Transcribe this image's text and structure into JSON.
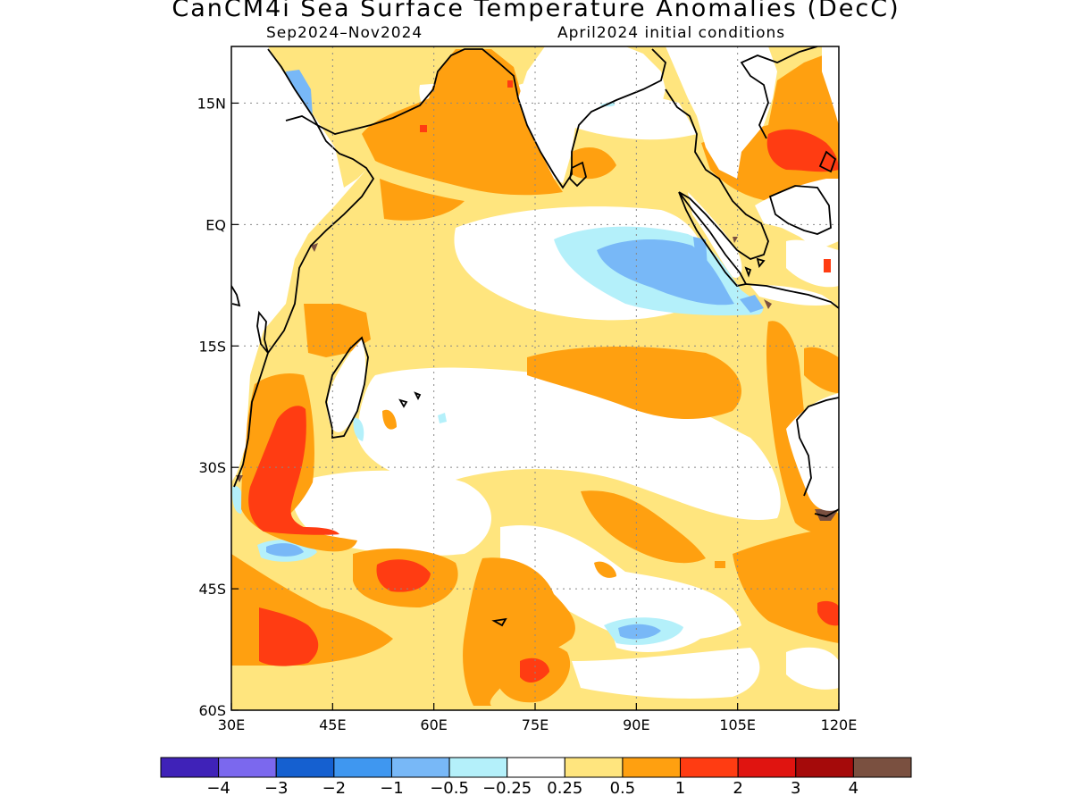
{
  "header": {
    "title": "CanCM4i Sea Surface Temperature Anomalies (DecC)",
    "subtitle_left": "Sep2024–Nov2024",
    "subtitle_right": "April2024 initial conditions"
  },
  "map": {
    "lon_range": [
      30,
      120
    ],
    "lat_range": [
      -60,
      22
    ],
    "lon_ticks": [
      {
        "value": 30,
        "label": "30E"
      },
      {
        "value": 45,
        "label": "45E"
      },
      {
        "value": 60,
        "label": "60E"
      },
      {
        "value": 75,
        "label": "75E"
      },
      {
        "value": 90,
        "label": "90E"
      },
      {
        "value": 105,
        "label": "105E"
      },
      {
        "value": 120,
        "label": "120E"
      }
    ],
    "lat_ticks": [
      {
        "value": 15,
        "label": "15N"
      },
      {
        "value": 0,
        "label": "EQ"
      },
      {
        "value": -15,
        "label": "15S"
      },
      {
        "value": -30,
        "label": "30S"
      },
      {
        "value": -45,
        "label": "45S"
      },
      {
        "value": -60,
        "label": "60S"
      }
    ],
    "gridlines": true
  },
  "colorbar": {
    "colors": [
      "#3f22b8",
      "#7b68ee",
      "#1560d0",
      "#3f97f0",
      "#78b8f7",
      "#b4f0fa",
      "#ffffff",
      "#ffe57e",
      "#ffa010",
      "#ff3c12",
      "#e01410",
      "#a50a0a",
      "#7a5040"
    ],
    "labels": [
      "−4",
      "−3",
      "−2",
      "−1",
      "−0.5",
      "−0.25",
      "0.25",
      "0.5",
      "1",
      "2",
      "3",
      "4"
    ]
  }
}
